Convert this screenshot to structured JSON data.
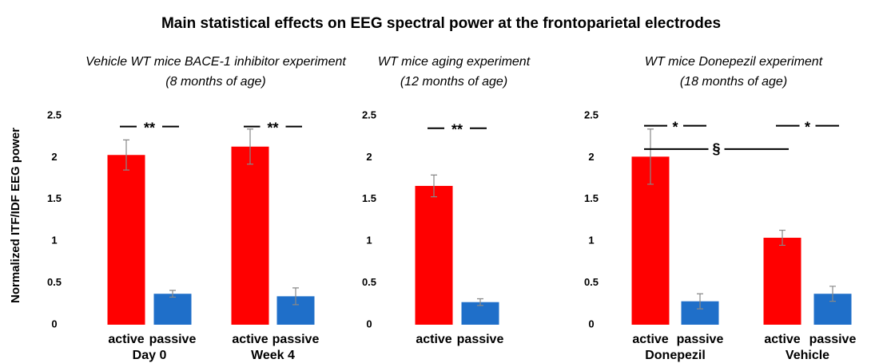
{
  "title": "Main statistical effects on EEG spectral power at the frontoparietal electrodes",
  "y_axis_label": "Normalized ITF/IDF EEG power",
  "chart_data": [
    {
      "type": "bar",
      "title": "Vehicle WT mice BACE-1 inhibitor experiment",
      "subtitle": "(8 months of age)",
      "categories": [
        "active",
        "passive",
        "active",
        "passive"
      ],
      "groups": [
        "Day 0",
        "Week 4"
      ],
      "values": [
        2.03,
        0.37,
        2.13,
        0.34
      ],
      "errors": [
        0.18,
        0.04,
        0.21,
        0.1
      ],
      "colors": [
        "#ff0000",
        "#1f6fc9",
        "#ff0000",
        "#1f6fc9"
      ],
      "ylim": [
        0,
        2.5
      ],
      "yticks": [
        0,
        0.5,
        1,
        1.5,
        2,
        2.5
      ],
      "annotations": [
        {
          "text": "**",
          "bars": [
            0,
            1
          ],
          "y": 2.37
        },
        {
          "text": "**",
          "bars": [
            2,
            3
          ],
          "y": 2.37
        }
      ]
    },
    {
      "type": "bar",
      "title": "WT mice aging experiment",
      "subtitle": "(12 months of age)",
      "categories": [
        "active",
        "passive"
      ],
      "values": [
        1.66,
        0.27
      ],
      "errors": [
        0.13,
        0.04
      ],
      "colors": [
        "#ff0000",
        "#1f6fc9"
      ],
      "ylim": [
        0,
        2.5
      ],
      "yticks": [
        0,
        0.5,
        1,
        1.5,
        2,
        2.5
      ],
      "annotations": [
        {
          "text": "**",
          "bars": [
            0,
            1
          ],
          "y": 2.35
        }
      ]
    },
    {
      "type": "bar",
      "title": "WT mice Donepezil experiment",
      "subtitle": "(18 months of age)",
      "categories": [
        "active",
        "passive",
        "active",
        "passive"
      ],
      "groups": [
        "Donepezil",
        "Vehicle"
      ],
      "values": [
        2.01,
        0.28,
        1.04,
        0.37
      ],
      "errors": [
        0.33,
        0.09,
        0.09,
        0.09
      ],
      "colors": [
        "#ff0000",
        "#1f6fc9",
        "#ff0000",
        "#1f6fc9"
      ],
      "ylim": [
        0,
        2.5
      ],
      "yticks": [
        0,
        0.5,
        1,
        1.5,
        2,
        2.5
      ],
      "annotations": [
        {
          "text": "*",
          "bars": [
            0,
            1
          ],
          "y": 2.38
        },
        {
          "text": "*",
          "bars": [
            2,
            3
          ],
          "y": 2.38
        },
        {
          "text": "§",
          "bars": [
            0,
            2
          ],
          "y": 2.1
        }
      ]
    }
  ]
}
